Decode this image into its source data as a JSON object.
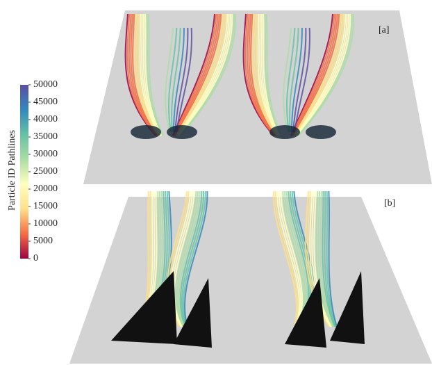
{
  "colorbar": {
    "label": "Particle ID Pathlines",
    "min": 0,
    "max": 50000,
    "ticks": [
      0,
      5000,
      10000,
      15000,
      20000,
      25000,
      30000,
      35000,
      40000,
      45000,
      50000
    ],
    "colors": [
      "#9e0142",
      "#f46d43",
      "#fee08b",
      "#ffffbf",
      "#abdda4",
      "#66c2a5",
      "#3288bd",
      "#5e4fa2"
    ]
  },
  "panels": [
    {
      "label": "[a]"
    },
    {
      "label": "[b]"
    }
  ]
}
